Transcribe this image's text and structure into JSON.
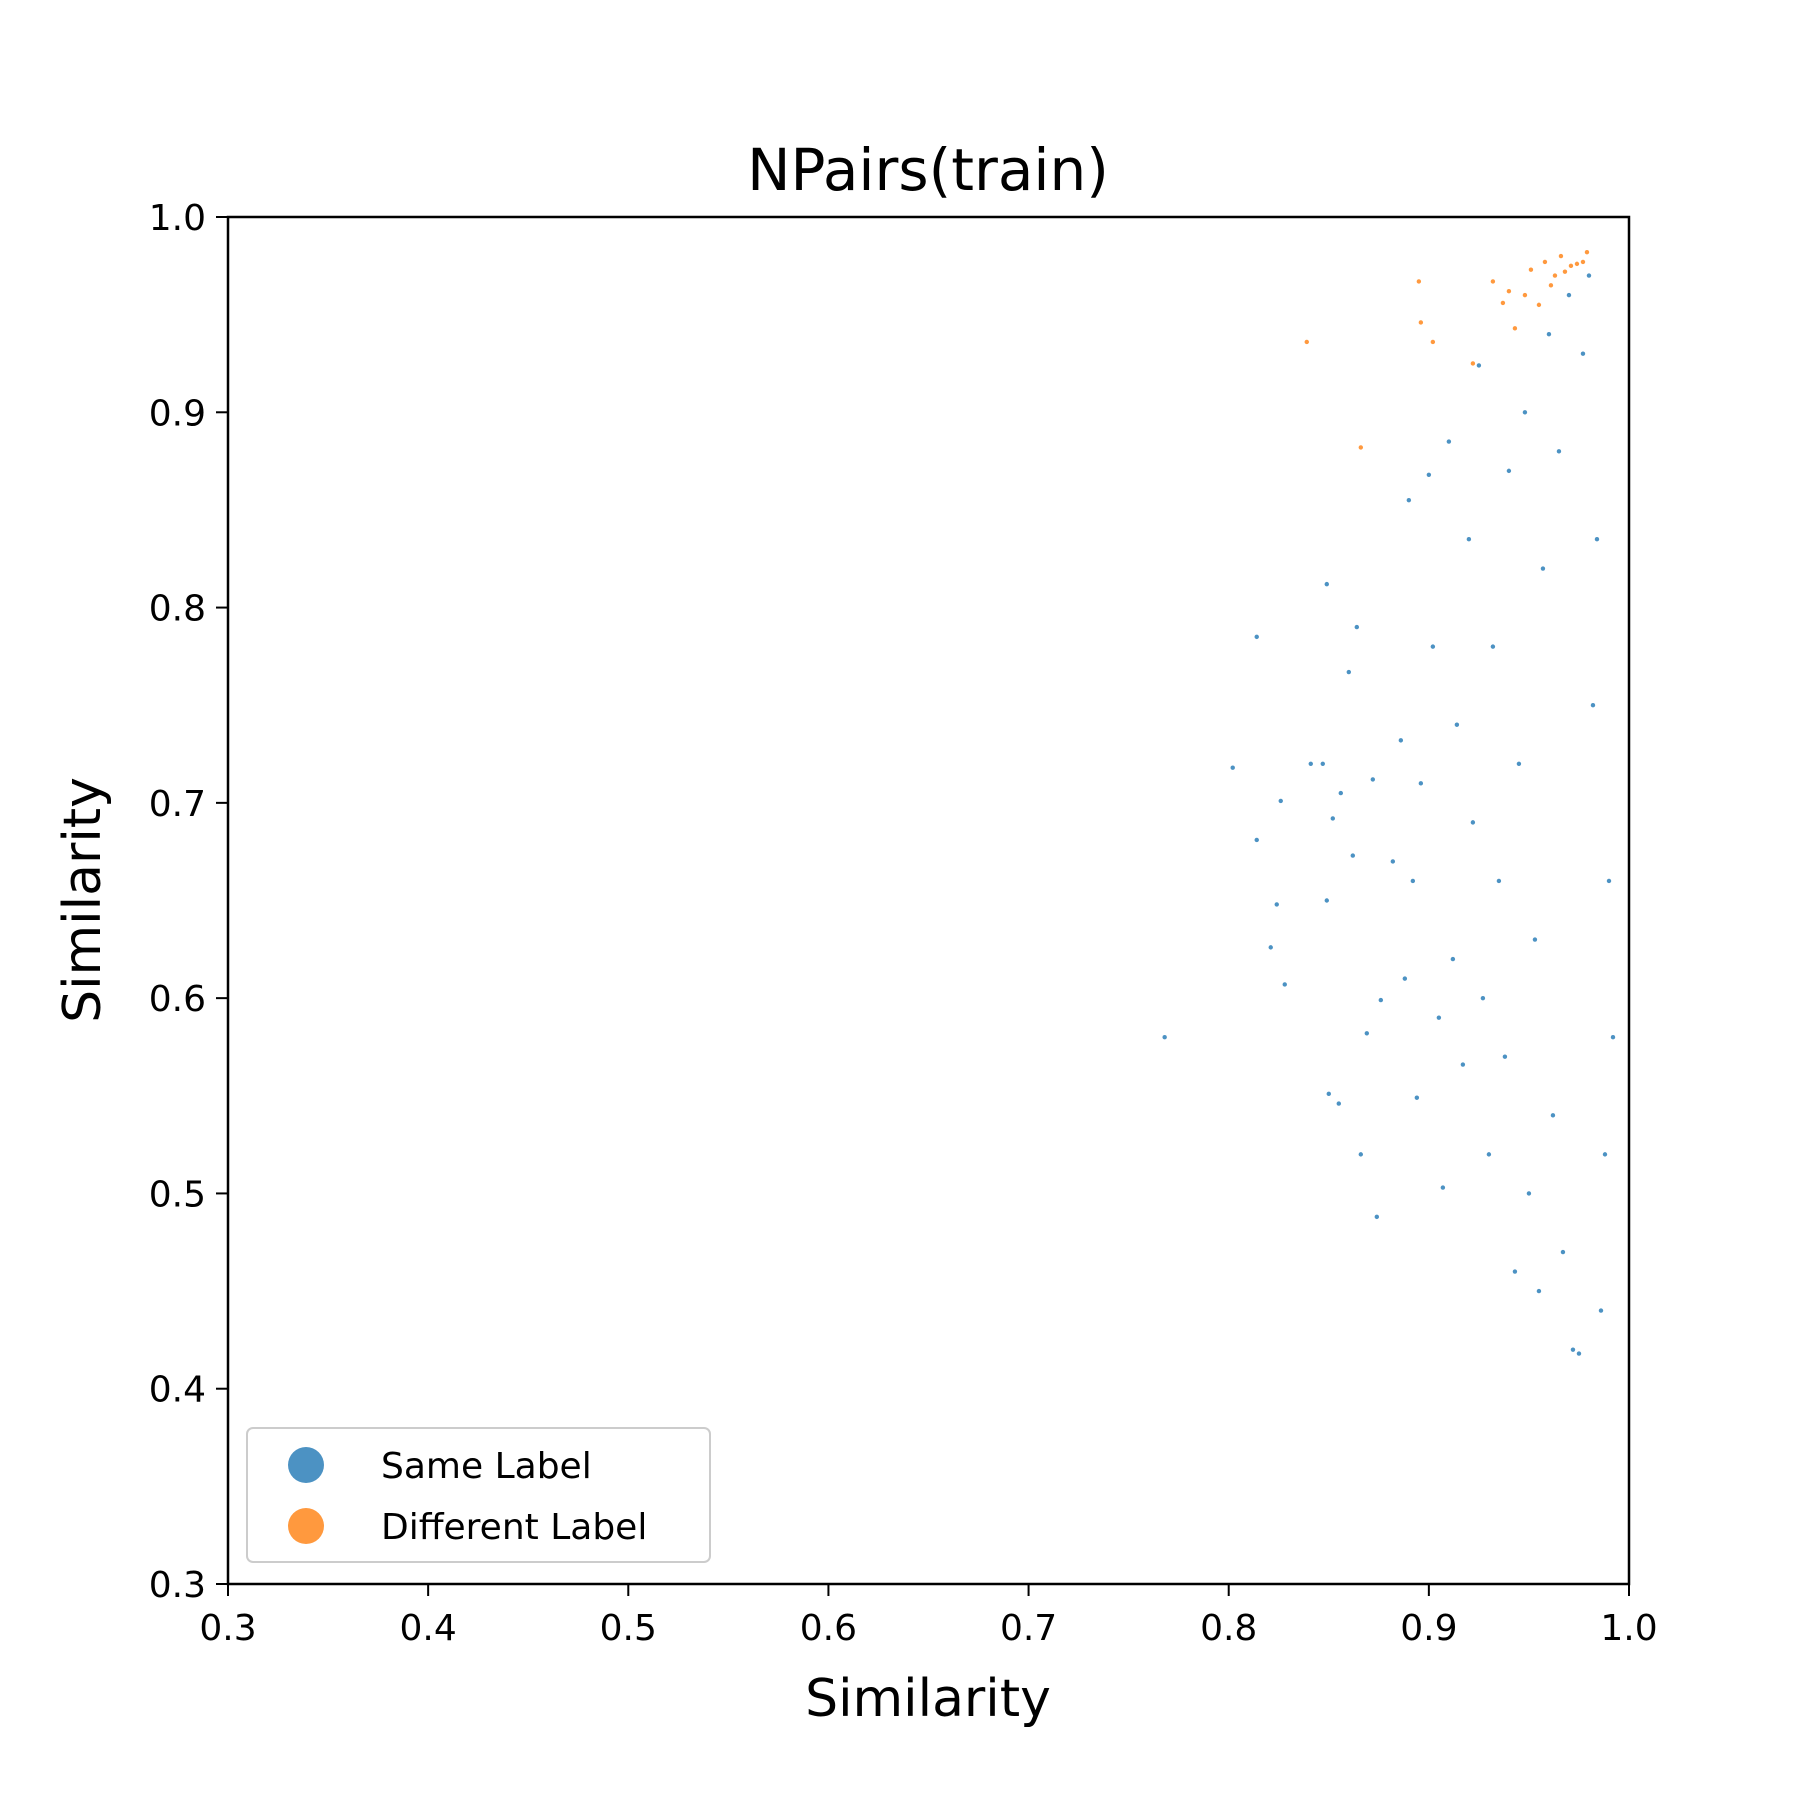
{
  "chart_data": {
    "type": "scatter",
    "title": "NPairs(train)",
    "xlabel": "Similarity",
    "ylabel": "Similarity",
    "xlim": [
      0.3,
      1.0
    ],
    "ylim": [
      0.3,
      1.0
    ],
    "xticks": [
      "0.3",
      "0.4",
      "0.5",
      "0.6",
      "0.7",
      "0.8",
      "0.9",
      "1.0"
    ],
    "yticks": [
      "0.3",
      "0.4",
      "0.5",
      "0.6",
      "0.7",
      "0.8",
      "0.9",
      "1.0"
    ],
    "legend_position": "bottom-left",
    "series": [
      {
        "name": "Same Label",
        "color": "#1f77b4",
        "points": [
          [
            0.768,
            0.58
          ],
          [
            0.802,
            0.718
          ],
          [
            0.814,
            0.785
          ],
          [
            0.814,
            0.681
          ],
          [
            0.821,
            0.626
          ],
          [
            0.824,
            0.648
          ],
          [
            0.826,
            0.701
          ],
          [
            0.828,
            0.607
          ],
          [
            0.841,
            0.72
          ],
          [
            0.847,
            0.72
          ],
          [
            0.849,
            0.812
          ],
          [
            0.849,
            0.65
          ],
          [
            0.85,
            0.551
          ],
          [
            0.852,
            0.692
          ],
          [
            0.855,
            0.546
          ],
          [
            0.856,
            0.705
          ],
          [
            0.86,
            0.767
          ],
          [
            0.862,
            0.673
          ],
          [
            0.864,
            0.79
          ],
          [
            0.866,
            0.52
          ],
          [
            0.869,
            0.582
          ],
          [
            0.872,
            0.712
          ],
          [
            0.874,
            0.488
          ],
          [
            0.876,
            0.599
          ],
          [
            0.882,
            0.67
          ],
          [
            0.886,
            0.732
          ],
          [
            0.888,
            0.61
          ],
          [
            0.89,
            0.855
          ],
          [
            0.892,
            0.66
          ],
          [
            0.894,
            0.549
          ],
          [
            0.896,
            0.71
          ],
          [
            0.9,
            0.868
          ],
          [
            0.902,
            0.78
          ],
          [
            0.905,
            0.59
          ],
          [
            0.907,
            0.503
          ],
          [
            0.91,
            0.885
          ],
          [
            0.912,
            0.62
          ],
          [
            0.914,
            0.74
          ],
          [
            0.917,
            0.566
          ],
          [
            0.92,
            0.835
          ],
          [
            0.922,
            0.69
          ],
          [
            0.925,
            0.924
          ],
          [
            0.927,
            0.6
          ],
          [
            0.93,
            0.52
          ],
          [
            0.932,
            0.78
          ],
          [
            0.935,
            0.66
          ],
          [
            0.938,
            0.57
          ],
          [
            0.94,
            0.87
          ],
          [
            0.943,
            0.46
          ],
          [
            0.945,
            0.72
          ],
          [
            0.948,
            0.9
          ],
          [
            0.95,
            0.5
          ],
          [
            0.953,
            0.63
          ],
          [
            0.955,
            0.45
          ],
          [
            0.957,
            0.82
          ],
          [
            0.96,
            0.94
          ],
          [
            0.962,
            0.54
          ],
          [
            0.965,
            0.88
          ],
          [
            0.967,
            0.47
          ],
          [
            0.97,
            0.96
          ],
          [
            0.972,
            0.42
          ],
          [
            0.975,
            0.418
          ],
          [
            0.977,
            0.93
          ],
          [
            0.98,
            0.97
          ],
          [
            0.982,
            0.75
          ],
          [
            0.984,
            0.835
          ],
          [
            0.986,
            0.44
          ],
          [
            0.988,
            0.52
          ],
          [
            0.99,
            0.66
          ],
          [
            0.992,
            0.58
          ]
        ]
      },
      {
        "name": "Different Label",
        "color": "#ff7f0e",
        "points": [
          [
            0.839,
            0.936
          ],
          [
            0.866,
            0.882
          ],
          [
            0.895,
            0.967
          ],
          [
            0.896,
            0.946
          ],
          [
            0.902,
            0.936
          ],
          [
            0.922,
            0.925
          ],
          [
            0.932,
            0.967
          ],
          [
            0.937,
            0.956
          ],
          [
            0.94,
            0.962
          ],
          [
            0.943,
            0.943
          ],
          [
            0.948,
            0.96
          ],
          [
            0.951,
            0.973
          ],
          [
            0.955,
            0.955
          ],
          [
            0.958,
            0.977
          ],
          [
            0.961,
            0.965
          ],
          [
            0.963,
            0.97
          ],
          [
            0.966,
            0.98
          ],
          [
            0.968,
            0.972
          ],
          [
            0.971,
            0.975
          ],
          [
            0.974,
            0.976
          ],
          [
            0.977,
            0.977
          ],
          [
            0.979,
            0.982
          ]
        ]
      }
    ]
  }
}
